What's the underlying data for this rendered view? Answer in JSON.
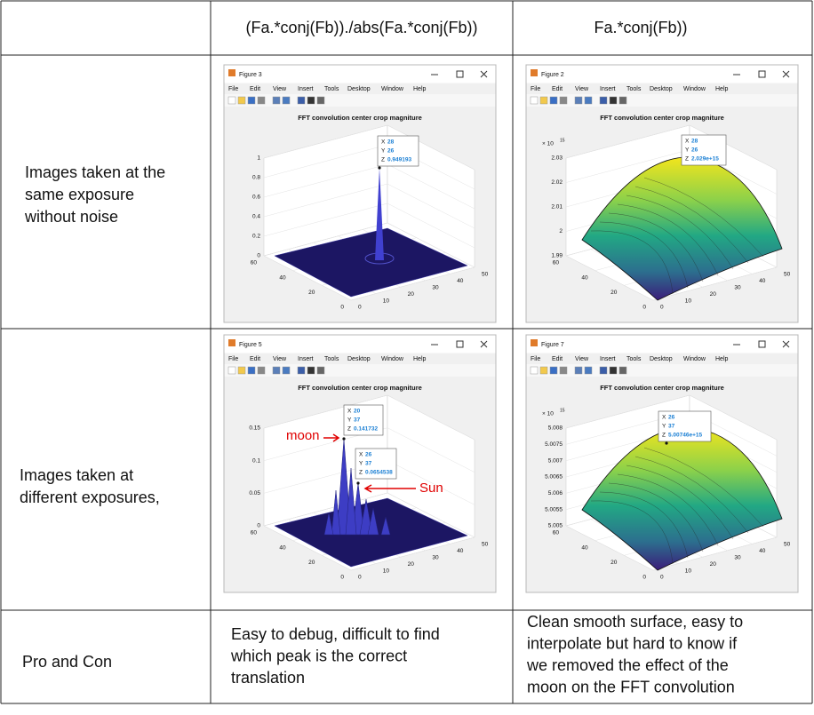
{
  "table": {
    "header": [
      "(Fa.*conj(Fb))./abs(Fa.*conj(Fb))",
      "Fa.*conj(Fb))"
    ],
    "rows": [
      {
        "label": [
          "Images taken at the",
          "same exposure",
          "without noise"
        ],
        "cells": [
          {
            "figure": {
              "window_title": "Figure 3",
              "plot_title": "FFT convolution center crop magniture",
              "zticks": [
                "0",
                "0.2",
                "0.4",
                "0.6",
                "0.8",
                "1"
              ],
              "yticks": [
                "0",
                "20",
                "40",
                "60"
              ],
              "xticks": [
                "0",
                "10",
                "20",
                "30",
                "40",
                "50"
              ],
              "datatips": [
                {
                  "x": "28",
                  "y": "26",
                  "z": "0.949193"
                }
              ]
            }
          },
          {
            "figure": {
              "window_title": "Figure 2",
              "plot_title": "FFT convolution center crop magniture",
              "z_exponent": {
                "base": "× 10",
                "power": "15"
              },
              "zticks": [
                "1.99",
                "2",
                "2.01",
                "2.02",
                "2.03"
              ],
              "yticks": [
                "0",
                "20",
                "40",
                "60"
              ],
              "xticks": [
                "0",
                "10",
                "20",
                "30",
                "40",
                "50"
              ],
              "datatips": [
                {
                  "x": "28",
                  "y": "26",
                  "z": "2.029e+15"
                }
              ]
            }
          }
        ]
      },
      {
        "label": [
          "Images taken at",
          "different exposures,"
        ],
        "cells": [
          {
            "figure": {
              "window_title": "Figure 5",
              "plot_title": "FFT convolution center crop magniture",
              "zticks": [
                "0",
                "0.05",
                "0.1",
                "0.15"
              ],
              "yticks": [
                "0",
                "20",
                "40",
                "60"
              ],
              "xticks": [
                "0",
                "10",
                "20",
                "30",
                "40",
                "50"
              ],
              "datatips": [
                {
                  "x": "20",
                  "y": "37",
                  "z": "0.141732"
                },
                {
                  "x": "26",
                  "y": "37",
                  "z": "0.0654538"
                }
              ],
              "annotations": [
                "moon",
                "Sun"
              ]
            }
          },
          {
            "figure": {
              "window_title": "Figure 7",
              "plot_title": "FFT convolution center crop magniture",
              "z_exponent": {
                "base": "× 10",
                "power": "15"
              },
              "zticks": [
                "5.005",
                "5.0055",
                "5.006",
                "5.0065",
                "5.007",
                "5.0075",
                "5.008"
              ],
              "yticks": [
                "0",
                "20",
                "40",
                "60"
              ],
              "xticks": [
                "0",
                "10",
                "20",
                "30",
                "40",
                "50"
              ],
              "datatips": [
                {
                  "x": "26",
                  "y": "37",
                  "z": "5.00746e+15"
                }
              ]
            }
          }
        ]
      },
      {
        "label": [
          "Pro and Con"
        ],
        "cells": [
          {
            "text": [
              "Easy to debug, difficult to find",
              "which peak is the correct",
              "translation"
            ]
          },
          {
            "text": [
              "Clean smooth surface, easy to",
              "interpolate but hard to know if",
              "we removed the effect of the",
              "moon on the FFT convolution"
            ]
          }
        ]
      }
    ]
  },
  "menu": [
    "File",
    "Edit",
    "View",
    "Insert",
    "Tools",
    "Desktop",
    "Window",
    "Help"
  ],
  "datatip_labels": [
    "X",
    "Y",
    "Z"
  ]
}
